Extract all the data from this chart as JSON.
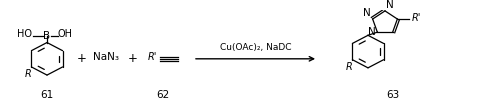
{
  "bg_color": "#ffffff",
  "fig_width": 5.0,
  "fig_height": 1.04,
  "dpi": 100,
  "label_61": "61",
  "label_62": "62",
  "label_63": "63",
  "reagent_text": "Cu(OAc)₂, NaDC",
  "nan3_text": "NaN₃",
  "r_label": "R",
  "r_prime_product": "R'",
  "ho_text": "HO",
  "oh_text": "OH",
  "b_text": "B",
  "n_text": "N",
  "plus_sign": "+",
  "line_color": "#000000",
  "font_size_main": 7.5,
  "font_size_number": 7.5
}
